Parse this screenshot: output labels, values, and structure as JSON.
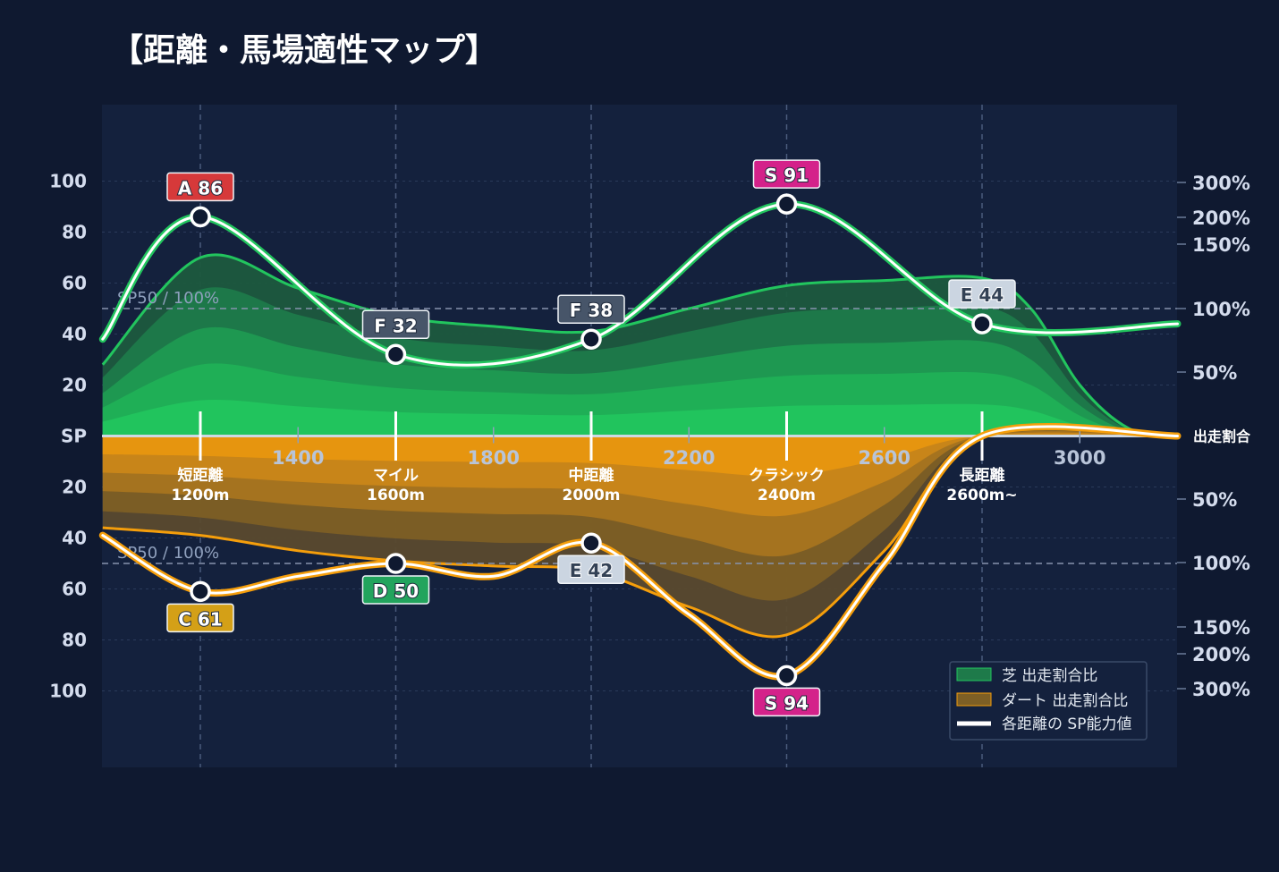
{
  "chart_data": {
    "type": "area",
    "title": "【距離・馬場適性マップ】",
    "xlabel": "",
    "ylabel": "",
    "x_ticks": [
      1400,
      1800,
      2200,
      2600,
      3000
    ],
    "xlim": [
      1000,
      3200
    ],
    "ylim_top": [
      0,
      100
    ],
    "ylim_bottom": [
      0,
      100
    ],
    "y_ticks": [
      "100",
      "80",
      "60",
      "40",
      "20",
      "SP",
      "20",
      "40",
      "60",
      "80",
      "100"
    ],
    "ratio_label": "出走割合",
    "ratio_ticks_top": [
      "300%",
      "200%",
      "150%",
      "100%",
      "50%"
    ],
    "ratio_ticks_bottom": [
      "50%",
      "100%",
      "150%",
      "200%",
      "300%"
    ],
    "sp50_label": "SP50 / 100%",
    "grid": true,
    "legend_position": "bottom-right",
    "categories": [
      {
        "name": "短距離",
        "dist": "1200m",
        "x": 1200
      },
      {
        "name": "マイル",
        "dist": "1600m",
        "x": 1600
      },
      {
        "name": "中距離",
        "dist": "2000m",
        "x": 2000
      },
      {
        "name": "クラシック",
        "dist": "2400m",
        "x": 2400
      },
      {
        "name": "長距離",
        "dist": "2600m~",
        "x": 2800
      }
    ],
    "series": [
      {
        "name": "芝 出走割合比",
        "color": "#22c55e",
        "area_x": [
          1000,
          1200,
          1400,
          1600,
          1800,
          2000,
          2200,
          2400,
          2600,
          2800,
          2900,
          3000,
          3100,
          3200
        ],
        "area_top": [
          28,
          70,
          58,
          47,
          43,
          41,
          50,
          59,
          61,
          62,
          50,
          20,
          3,
          0
        ],
        "sp_x": [
          1000,
          1200,
          1600,
          2000,
          2400,
          2800,
          3200
        ],
        "sp_values": [
          38,
          86,
          32,
          38,
          91,
          44,
          44
        ],
        "ranks": [
          {
            "x": 1200,
            "label": "A 86",
            "value": 86,
            "color": "#d6393a"
          },
          {
            "x": 1600,
            "label": "F 32",
            "value": 32,
            "color": "#475569"
          },
          {
            "x": 2000,
            "label": "F 38",
            "value": 38,
            "color": "#475569"
          },
          {
            "x": 2400,
            "label": "S 91",
            "value": 91,
            "color": "#d4228a"
          },
          {
            "x": 2800,
            "label": "E 44",
            "value": 44,
            "color": "#cbd5e1"
          }
        ]
      },
      {
        "name": "ダート 出走割合比",
        "color": "#f59e0b",
        "area_x": [
          1000,
          1200,
          1400,
          1600,
          1800,
          2000,
          2200,
          2400,
          2600,
          2800,
          3200
        ],
        "area_top": [
          36,
          39,
          45,
          49,
          51,
          53,
          67,
          78,
          45,
          0,
          0
        ],
        "sp_x": [
          1000,
          1200,
          1400,
          1600,
          1800,
          2000,
          2200,
          2400,
          2600,
          2800,
          3200
        ],
        "sp_values": [
          39,
          61,
          55,
          50,
          55,
          42,
          70,
          94,
          50,
          0,
          0
        ],
        "ranks": [
          {
            "x": 1200,
            "label": "C 61",
            "value": 61,
            "color": "#d4a017"
          },
          {
            "x": 1600,
            "label": "D 50",
            "value": 50,
            "color": "#22a45d"
          },
          {
            "x": 2000,
            "label": "E 42",
            "value": 42,
            "color": "#cbd5e1"
          },
          {
            "x": 2400,
            "label": "S 94",
            "value": 94,
            "color": "#d4228a"
          }
        ]
      },
      {
        "name": "各距離の SP能力値",
        "color": "#ffffff"
      }
    ]
  }
}
